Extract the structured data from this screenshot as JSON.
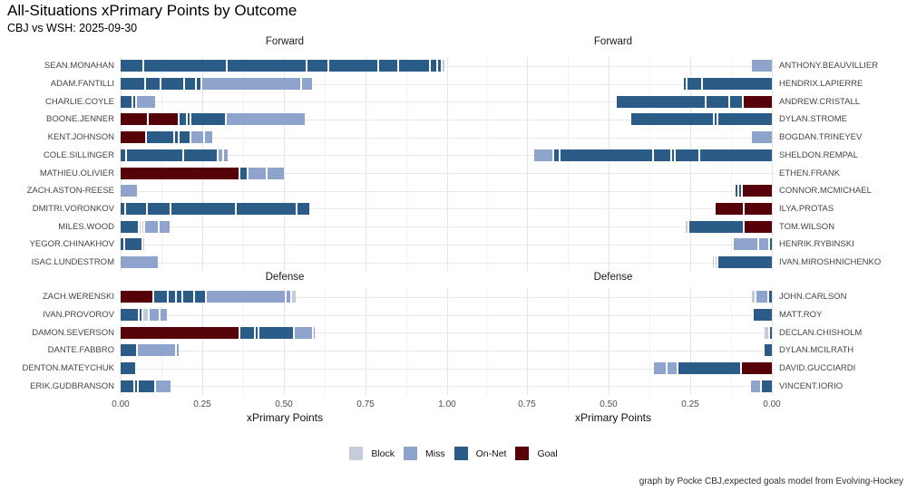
{
  "header": {
    "title": "All-Situations xPrimary Points by Outcome",
    "subtitle": "CBJ vs WSH: 2025-09-30"
  },
  "caption": "graph by Pocke CBJ,expected goals model from Evolving-Hockey",
  "colors": {
    "Block": "#c4ccd9",
    "Miss": "#8fa4cc",
    "On-Net": "#2a5c87",
    "Goal": "#560009",
    "grid_major": "#e4e4e4",
    "grid_minor": "#f2f2f2"
  },
  "legend": {
    "position": "bottom",
    "items": [
      {
        "label": "Block"
      },
      {
        "label": "Miss"
      },
      {
        "label": "On-Net"
      },
      {
        "label": "Goal"
      }
    ]
  },
  "chart_data": {
    "type": "bar",
    "stacked": true,
    "orientation": "horizontal",
    "title": "All-Situations xPrimary Points by Outcome",
    "subtitle": "CBJ vs WSH: 2025-09-30",
    "xlabel": "xPrimary Points",
    "outcomes": [
      "Block",
      "Miss",
      "On-Net",
      "Goal"
    ],
    "axis_label": "xPrimary Points",
    "panels": [
      {
        "team": "CBJ",
        "side": "left",
        "axis_direction": "ltr",
        "xlim": [
          0,
          1.0
        ],
        "ticks": [
          {
            "label": "0.00",
            "value": 0
          },
          {
            "label": "0.25",
            "value": 0.25
          },
          {
            "label": "0.50",
            "value": 0.5
          },
          {
            "label": "0.75",
            "value": 0.75
          },
          {
            "label": "1.00",
            "value": 1.0
          }
        ],
        "sections": [
          {
            "label": "Forward",
            "players": [
              {
                "name": "SEAN.MONAHAN",
                "segments": [
                  [
                    "On-Net",
                    0.067
                  ],
                  [
                    "On-Net",
                    0.25
                  ],
                  [
                    "On-Net",
                    0.239
                  ],
                  [
                    "On-Net",
                    0.061
                  ],
                  [
                    "On-Net",
                    0.147
                  ],
                  [
                    "On-Net",
                    0.056
                  ],
                  [
                    "On-Net",
                    0.092
                  ],
                  [
                    "On-Net",
                    0.017
                  ],
                  [
                    "On-Net",
                    0.008
                  ],
                  [
                    "Block",
                    0.006
                  ]
                ]
              },
              {
                "name": "ADAM.FANTILLI",
                "segments": [
                  [
                    "On-Net",
                    0.072
                  ],
                  [
                    "On-Net",
                    0.042
                  ],
                  [
                    "On-Net",
                    0.067
                  ],
                  [
                    "On-Net",
                    0.031
                  ],
                  [
                    "On-Net",
                    0.011
                  ],
                  [
                    "Miss",
                    0.3
                  ],
                  [
                    "Miss",
                    0.031
                  ]
                ]
              },
              {
                "name": "CHARLIE.COYLE",
                "segments": [
                  [
                    "On-Net",
                    0.033
                  ],
                  [
                    "On-Net",
                    0.006
                  ],
                  [
                    "Miss",
                    0.056
                  ]
                ]
              },
              {
                "name": "BOONE.JENNER",
                "segments": [
                  [
                    "Goal",
                    0.081
                  ],
                  [
                    "Goal",
                    0.089
                  ],
                  [
                    "On-Net",
                    0.019
                  ],
                  [
                    "On-Net",
                    0.006
                  ],
                  [
                    "On-Net",
                    0.103
                  ],
                  [
                    "Miss",
                    0.239
                  ]
                ]
              },
              {
                "name": "KENT.JOHNSON",
                "segments": [
                  [
                    "Goal",
                    0.075
                  ],
                  [
                    "On-Net",
                    0.08
                  ],
                  [
                    "On-Net",
                    0.008
                  ],
                  [
                    "On-Net",
                    0.03
                  ],
                  [
                    "Miss",
                    0.035
                  ],
                  [
                    "Miss",
                    0.022
                  ]
                ]
              },
              {
                "name": "COLE.SILLINGER",
                "segments": [
                  [
                    "On-Net",
                    0.015
                  ],
                  [
                    "On-Net",
                    0.17
                  ],
                  [
                    "On-Net",
                    0.1
                  ],
                  [
                    "Miss",
                    0.012
                  ],
                  [
                    "Miss",
                    0.012
                  ]
                ]
              },
              {
                "name": "MATHIEU.OLIVIER",
                "segments": [
                  [
                    "Goal",
                    0.361
                  ],
                  [
                    "On-Net",
                    0.019
                  ],
                  [
                    "Miss",
                    0.053
                  ],
                  [
                    "Miss",
                    0.05
                  ]
                ]
              },
              {
                "name": "ZACH.ASTON-REESE",
                "segments": [
                  [
                    "Miss",
                    0.05
                  ]
                ]
              },
              {
                "name": "DMITRI.VORONKOV",
                "segments": [
                  [
                    "On-Net",
                    0.01
                  ],
                  [
                    "On-Net",
                    0.062
                  ],
                  [
                    "On-Net",
                    0.067
                  ],
                  [
                    "On-Net",
                    0.195
                  ],
                  [
                    "On-Net",
                    0.18
                  ],
                  [
                    "On-Net",
                    0.035
                  ]
                ]
              },
              {
                "name": "MILES.WOOD",
                "segments": [
                  [
                    "On-Net",
                    0.053
                  ],
                  [
                    "Block",
                    0.004
                  ],
                  [
                    "Block",
                    0.004
                  ],
                  [
                    "Miss",
                    0.039
                  ],
                  [
                    "Miss",
                    0.031
                  ]
                ]
              },
              {
                "name": "YEGOR.CHINAKHOV",
                "segments": [
                  [
                    "On-Net",
                    0.009
                  ],
                  [
                    "On-Net",
                    0.05
                  ],
                  [
                    "Block",
                    0.004
                  ]
                ]
              },
              {
                "name": "ISAC.LUNDESTROM",
                "segments": [
                  [
                    "Miss",
                    0.114
                  ]
                ]
              }
            ]
          },
          {
            "label": "Defense",
            "players": [
              {
                "name": "ZACH.WERENSKI",
                "segments": [
                  [
                    "Goal",
                    0.097
                  ],
                  [
                    "On-Net",
                    0.039
                  ],
                  [
                    "On-Net",
                    0.019
                  ],
                  [
                    "On-Net",
                    0.014
                  ],
                  [
                    "On-Net",
                    0.031
                  ],
                  [
                    "On-Net",
                    0.031
                  ],
                  [
                    "Miss",
                    0.24
                  ],
                  [
                    "Miss",
                    0.012
                  ],
                  [
                    "Block",
                    0.012
                  ]
                ]
              },
              {
                "name": "IVAN.PROVOROV",
                "segments": [
                  [
                    "On-Net",
                    0.053
                  ],
                  [
                    "On-Net",
                    0.006
                  ],
                  [
                    "Block",
                    0.014
                  ],
                  [
                    "Miss",
                    0.028
                  ],
                  [
                    "Miss",
                    0.02
                  ]
                ]
              },
              {
                "name": "DAMON.SEVERSON",
                "segments": [
                  [
                    "Goal",
                    0.36
                  ],
                  [
                    "On-Net",
                    0.042
                  ],
                  [
                    "On-Net",
                    0.005
                  ],
                  [
                    "On-Net",
                    0.103
                  ],
                  [
                    "Miss",
                    0.053
                  ],
                  [
                    "Miss",
                    0.004
                  ]
                ]
              },
              {
                "name": "DANTE.FABBRO",
                "segments": [
                  [
                    "On-Net",
                    0.047
                  ],
                  [
                    "Miss",
                    0.114
                  ],
                  [
                    "Miss",
                    0.005
                  ]
                ]
              },
              {
                "name": "DENTON.MATEYCHUK",
                "segments": [
                  [
                    "On-Net",
                    0.045
                  ]
                ]
              },
              {
                "name": "ERIK.GUDBRANSON",
                "segments": [
                  [
                    "On-Net",
                    0.039
                  ],
                  [
                    "On-Net",
                    0.005
                  ],
                  [
                    "On-Net",
                    0.047
                  ],
                  [
                    "Miss",
                    0.045
                  ]
                ]
              }
            ]
          }
        ]
      },
      {
        "team": "WSH",
        "side": "right",
        "axis_direction": "rtl",
        "xlim": [
          0,
          0.98
        ],
        "ticks": [
          {
            "label": "0.75",
            "value": 0.75
          },
          {
            "label": "0.50",
            "value": 0.5
          },
          {
            "label": "0.25",
            "value": 0.25
          },
          {
            "label": "0.00",
            "value": 0
          }
        ],
        "sections": [
          {
            "label": "Forward",
            "players": [
              {
                "name": "ANTHONY.BEAUVILLIER",
                "segments": [
                  [
                    "Miss",
                    0.06
                  ]
                ]
              },
              {
                "name": "HENDRIX.LAPIERRE",
                "segments": [
                  [
                    "On-Net",
                    0.21
                  ],
                  [
                    "On-Net",
                    0.042
                  ],
                  [
                    "On-Net",
                    0.005
                  ]
                ]
              },
              {
                "name": "ANDREW.CRISTALL",
                "segments": [
                  [
                    "Goal",
                    0.087
                  ],
                  [
                    "On-Net",
                    0.037
                  ],
                  [
                    "On-Net",
                    0.067
                  ],
                  [
                    "On-Net",
                    0.27
                  ]
                ]
              },
              {
                "name": "DYLAN.STROME",
                "segments": [
                  [
                    "On-Net",
                    0.163
                  ],
                  [
                    "On-Net",
                    0.006
                  ],
                  [
                    "On-Net",
                    0.25
                  ]
                ]
              },
              {
                "name": "BOGDAN.TRINEYEV",
                "segments": [
                  [
                    "Miss",
                    0.06
                  ]
                ]
              },
              {
                "name": "SHELDON.REMPAL",
                "segments": [
                  [
                    "On-Net",
                    0.22
                  ],
                  [
                    "On-Net",
                    0.07
                  ],
                  [
                    "On-Net",
                    0.005
                  ],
                  [
                    "On-Net",
                    0.05
                  ],
                  [
                    "On-Net",
                    0.28
                  ],
                  [
                    "On-Net",
                    0.015
                  ],
                  [
                    "Miss",
                    0.056
                  ]
                ]
              },
              {
                "name": "ETHEN.FRANK",
                "segments": []
              },
              {
                "name": "CONNOR.MCMICHAEL",
                "segments": [
                  [
                    "Goal",
                    0.09
                  ],
                  [
                    "On-Net",
                    0.005
                  ],
                  [
                    "On-Net",
                    0.005
                  ]
                ]
              },
              {
                "name": "ILYA.PROTAS",
                "segments": [
                  [
                    "Goal",
                    0.082
                  ],
                  [
                    "Goal",
                    0.084
                  ]
                ]
              },
              {
                "name": "TOM.WILSON",
                "segments": [
                  [
                    "Goal",
                    0.082
                  ],
                  [
                    "On-Net",
                    0.165
                  ],
                  [
                    "Block",
                    0.005
                  ]
                ]
              },
              {
                "name": "HENRIK.RYBINSKI",
                "segments": [
                  [
                    "On-Net",
                    0.006
                  ],
                  [
                    "Miss",
                    0.028
                  ],
                  [
                    "Miss",
                    0.073
                  ]
                ]
              },
              {
                "name": "IVAN.MIROSHNICHENKO",
                "segments": [
                  [
                    "On-Net",
                    0.165
                  ],
                  [
                    "Block",
                    0.004
                  ],
                  [
                    "Block",
                    0.004
                  ]
                ]
              }
            ]
          },
          {
            "label": "Defense",
            "players": [
              {
                "name": "JOHN.CARLSON",
                "segments": [
                  [
                    "On-Net",
                    0.008
                  ],
                  [
                    "Miss",
                    0.034
                  ],
                  [
                    "Block",
                    0.008
                  ]
                ]
              },
              {
                "name": "MATT.ROY",
                "segments": [
                  [
                    "On-Net",
                    0.056
                  ]
                ]
              },
              {
                "name": "DECLAN.CHISHOLM",
                "segments": [
                  [
                    "On-Net",
                    0.005
                  ],
                  [
                    "Block",
                    0.012
                  ]
                ]
              },
              {
                "name": "DYLAN.MCILRATH",
                "segments": [
                  [
                    "On-Net",
                    0.022
                  ]
                ]
              },
              {
                "name": "DAVID.GUCCIARDI",
                "segments": [
                  [
                    "Goal",
                    0.092
                  ],
                  [
                    "On-Net",
                    0.19
                  ],
                  [
                    "Miss",
                    0.028
                  ],
                  [
                    "Miss",
                    0.037
                  ]
                ]
              },
              {
                "name": "VINCENT.IORIO",
                "segments": [
                  [
                    "On-Net",
                    0.03
                  ],
                  [
                    "Miss",
                    0.028
                  ]
                ]
              }
            ]
          }
        ]
      }
    ]
  }
}
